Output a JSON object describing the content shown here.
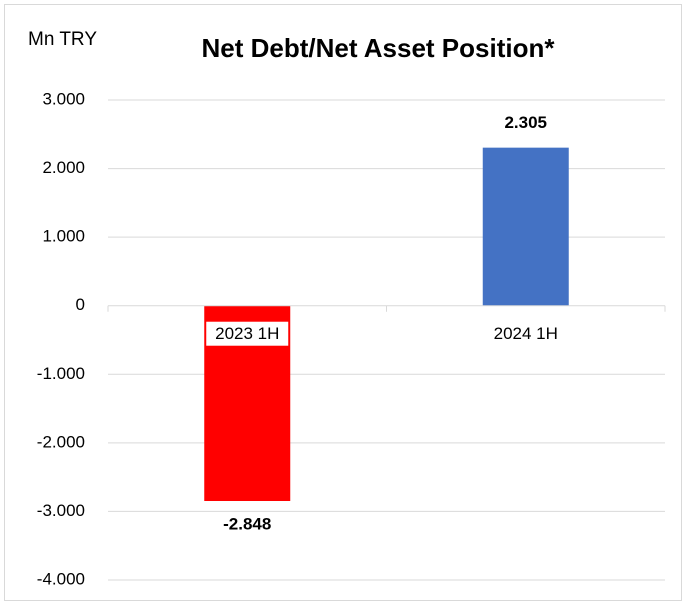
{
  "chart_data": {
    "type": "bar",
    "title": "Net Debt/Net Asset Position*",
    "ylabel": "Mn TRY",
    "categories": [
      "2023 1H",
      "2024 1H"
    ],
    "values": [
      -2848,
      2305
    ],
    "value_labels": [
      "-2.848",
      "2.305"
    ],
    "colors": [
      "#ff0000",
      "#4472c4"
    ],
    "label_colors": [
      "#ff0000",
      "#00b050"
    ],
    "ylim": [
      -4000,
      3000
    ],
    "yticks": [
      {
        "value": 3000,
        "label": "3.000"
      },
      {
        "value": 2000,
        "label": "2.000"
      },
      {
        "value": 1000,
        "label": "1.000"
      },
      0,
      {
        "value": -1000,
        "label": "-1.000"
      },
      {
        "value": -2000,
        "label": "-2.000"
      },
      {
        "value": -3000,
        "label": "-3.000"
      },
      {
        "value": -4000,
        "label": "-4.000"
      }
    ],
    "grid": true
  }
}
